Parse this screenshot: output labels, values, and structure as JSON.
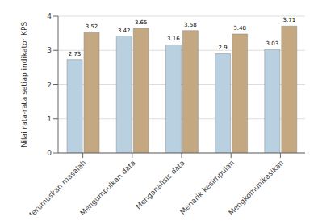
{
  "chart_data": {
    "type": "bar",
    "categories": [
      "Merumuskan masalah",
      "Mengumpulkan data",
      "Menganalisis data",
      "Menarik kesimpulan",
      "Mengkomunikasikan"
    ],
    "series": [
      {
        "color": "#b8d0e0",
        "values": [
          2.73,
          3.42,
          3.16,
          2.9,
          3.03
        ]
      },
      {
        "color": "#c4a882",
        "values": [
          3.52,
          3.65,
          3.58,
          3.48,
          3.71
        ]
      }
    ],
    "ylabel": "Nilai rata-rata setiap indikator KPS",
    "ylim": [
      0,
      4
    ],
    "yticks": [
      0,
      1,
      2,
      3,
      4
    ],
    "grid": true,
    "data_labels": true
  }
}
